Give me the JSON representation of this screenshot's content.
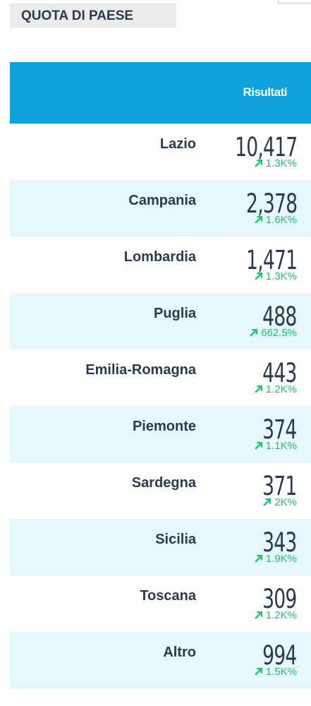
{
  "header": {
    "title": "QUOTA DI PAESE"
  },
  "table": {
    "column_header": "Risultati",
    "rows": [
      {
        "region": "Lazio",
        "value": "10,417",
        "change": "1.3K%"
      },
      {
        "region": "Campania",
        "value": "2,378",
        "change": "1.6K%"
      },
      {
        "region": "Lombardia",
        "value": "1,471",
        "change": "1.3K%"
      },
      {
        "region": "Puglia",
        "value": "488",
        "change": "662.5%"
      },
      {
        "region": "Emilia-Romagna",
        "value": "443",
        "change": "1.2K%"
      },
      {
        "region": "Piemonte",
        "value": "374",
        "change": "1.1K%"
      },
      {
        "region": "Sardegna",
        "value": "371",
        "change": "2K%"
      },
      {
        "region": "Sicilia",
        "value": "343",
        "change": "1.9K%"
      },
      {
        "region": "Toscana",
        "value": "309",
        "change": "1.2K%"
      },
      {
        "region": "Altro",
        "value": "994",
        "change": "1.5K%"
      }
    ]
  }
}
